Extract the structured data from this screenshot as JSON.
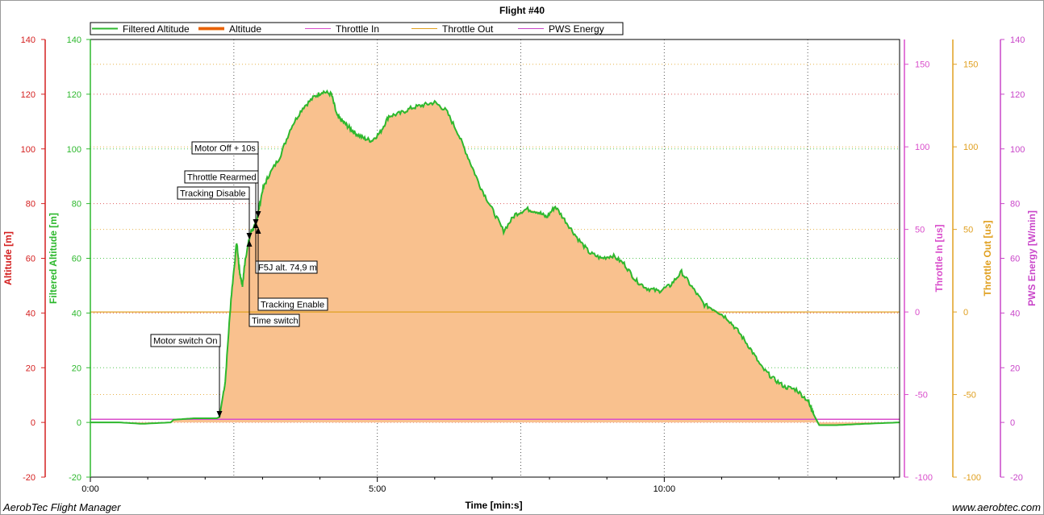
{
  "title": "Flight #40",
  "footer": {
    "left": "AerobTec Flight Manager",
    "right": "www.aerobtec.com"
  },
  "colors": {
    "filtered_altitude": "#2db82d",
    "altitude_fill": "#f9c18e",
    "altitude_line": "#e8610a",
    "throttle_in": "#d94ecb",
    "throttle_out": "#e0a020",
    "pws_energy": "#c946c9",
    "axis_altitude": "#d42020",
    "axis_filtered": "#2db82d",
    "axis_throttle_in": "#d94ecb",
    "axis_throttle_out": "#e0a020",
    "axis_pws": "#c946c9"
  },
  "chart_data": {
    "type": "area",
    "title": "Flight #40",
    "xlabel": "Time [min:s]",
    "xlim": [
      0,
      14.1
    ],
    "x_ticks": [
      {
        "v": 0,
        "label": "0:00"
      },
      {
        "v": 5,
        "label": "5:00"
      },
      {
        "v": 10,
        "label": "10:00"
      }
    ],
    "grid": true,
    "legend": [
      "Filtered Altitude",
      "Altitude",
      "Throttle In",
      "Throttle Out",
      "PWS Energy"
    ],
    "legend_position": "top-left",
    "axes": [
      {
        "label": "Altitude [m]",
        "side": "left",
        "lim": [
          -20,
          140
        ],
        "ticks": [
          "-20",
          "0",
          "20",
          "40",
          "60",
          "80",
          "100",
          "120",
          "140"
        ]
      },
      {
        "label": "Filtered Altitude [m]",
        "side": "left",
        "lim": [
          -20,
          140
        ],
        "ticks": [
          "-20",
          "0",
          "20",
          "40",
          "60",
          "80",
          "100",
          "120",
          "140"
        ]
      },
      {
        "label": "Throttle In [us]",
        "side": "right",
        "lim": [
          -100,
          165
        ],
        "ticks": [
          "-100",
          "-50",
          "0",
          "50",
          "100",
          "150"
        ]
      },
      {
        "label": "Throttle Out [us]",
        "side": "right",
        "lim": [
          -100,
          165
        ],
        "ticks": [
          "-100",
          "-50",
          "0",
          "50",
          "100",
          "150"
        ]
      },
      {
        "label": "PWS Energy [W/min]",
        "side": "right",
        "lim": [
          -20,
          140
        ],
        "ticks": [
          "-20",
          "0",
          "20",
          "40",
          "60",
          "80",
          "100",
          "120",
          "140"
        ]
      }
    ],
    "series": [
      {
        "name": "Filtered Altitude",
        "x": [
          0,
          0.5,
          0.9,
          1.4,
          1.45,
          1.8,
          2.2,
          2.25,
          2.35,
          2.45,
          2.55,
          2.6,
          2.65,
          2.7,
          2.8,
          2.85,
          2.9,
          3.0,
          3.1,
          3.3,
          3.5,
          3.7,
          3.9,
          4.05,
          4.2,
          4.3,
          4.4,
          4.5,
          4.6,
          4.75,
          4.9,
          5.05,
          5.2,
          5.4,
          5.6,
          5.8,
          6.0,
          6.2,
          6.4,
          6.6,
          6.8,
          7.0,
          7.2,
          7.4,
          7.6,
          7.8,
          7.95,
          8.1,
          8.3,
          8.5,
          8.7,
          8.9,
          9.1,
          9.3,
          9.5,
          9.7,
          9.9,
          10.1,
          10.3,
          10.5,
          10.7,
          10.9,
          11.1,
          11.3,
          11.5,
          11.7,
          11.9,
          12.1,
          12.3,
          12.5,
          12.55,
          12.6,
          12.65,
          12.7,
          13.0,
          13.5,
          14.1
        ],
        "values": [
          0,
          0,
          -0.5,
          0,
          1,
          1.5,
          1.5,
          2,
          15,
          45,
          66,
          55,
          50,
          60,
          70,
          71,
          74,
          85,
          90,
          97,
          108,
          115,
          119,
          121,
          120,
          112,
          110,
          108,
          106,
          104,
          103,
          106,
          112,
          113,
          115,
          116,
          117,
          114,
          106,
          96,
          86,
          78,
          70,
          76,
          78,
          77,
          75,
          79,
          73,
          67,
          62,
          60,
          61,
          58,
          52,
          49,
          48,
          50,
          55,
          49,
          43,
          41,
          38,
          33,
          27,
          20,
          16,
          13,
          12,
          8,
          6,
          3,
          1,
          -1,
          -1,
          -0.5,
          0
        ]
      },
      {
        "name": "Altitude",
        "x": [
          0,
          0.5,
          0.9,
          1.4,
          1.45,
          1.8,
          2.2,
          2.25,
          2.35,
          2.45,
          2.55,
          2.6,
          2.65,
          2.7,
          2.8,
          2.85,
          2.9,
          3.0,
          3.1,
          3.3,
          3.5,
          3.7,
          3.9,
          4.05,
          4.2,
          4.3,
          4.4,
          4.5,
          4.6,
          4.75,
          4.9,
          5.05,
          5.2,
          5.4,
          5.6,
          5.8,
          6.0,
          6.2,
          6.4,
          6.6,
          6.8,
          7.0,
          7.2,
          7.4,
          7.6,
          7.8,
          7.95,
          8.1,
          8.3,
          8.5,
          8.7,
          8.9,
          9.1,
          9.3,
          9.5,
          9.7,
          9.9,
          10.1,
          10.3,
          10.5,
          10.7,
          10.9,
          11.1,
          11.3,
          11.5,
          11.7,
          11.9,
          12.1,
          12.3,
          12.5,
          12.55,
          12.6,
          12.65,
          12.7,
          13.0,
          13.5,
          14.1
        ],
        "values": [
          0,
          0,
          -0.5,
          0,
          1,
          1.5,
          1.5,
          2,
          15,
          45,
          66,
          55,
          50,
          60,
          70,
          71,
          74,
          85,
          90,
          97,
          108,
          115,
          119,
          121,
          120,
          112,
          110,
          108,
          106,
          104,
          103,
          106,
          112,
          113,
          115,
          116,
          117,
          114,
          106,
          96,
          86,
          78,
          70,
          76,
          78,
          77,
          75,
          79,
          73,
          67,
          62,
          60,
          61,
          58,
          52,
          49,
          48,
          50,
          55,
          49,
          43,
          41,
          38,
          33,
          27,
          20,
          16,
          13,
          12,
          8,
          6,
          3,
          1,
          -1,
          -1,
          -0.5,
          0
        ]
      },
      {
        "name": "Throttle In",
        "x": [
          0,
          14.1
        ],
        "values": [
          -65,
          -65
        ]
      },
      {
        "name": "Throttle Out",
        "x": [
          0,
          14.1
        ],
        "values": [
          0,
          0
        ]
      }
    ],
    "annotations": [
      {
        "label": "Motor switch On",
        "x": 2.25,
        "y": 2,
        "dir": "down"
      },
      {
        "label": "Time switch",
        "x": 2.8,
        "y": 70,
        "dir": "up"
      },
      {
        "label": "Tracking Disable",
        "x": 2.78,
        "y": 67,
        "dir": "down"
      },
      {
        "label": "Throttle Rearmed",
        "x": 2.9,
        "y": 74,
        "dir": "down"
      },
      {
        "label": "Motor Off + 10s",
        "x": 2.92,
        "y": 75,
        "dir": "down"
      },
      {
        "label": "F5J alt. 74,9 m",
        "x": 2.9,
        "y": 74.9,
        "dir": "up"
      },
      {
        "label": "Tracking Enable",
        "x": 2.95,
        "y": 70,
        "dir": "up"
      }
    ]
  }
}
